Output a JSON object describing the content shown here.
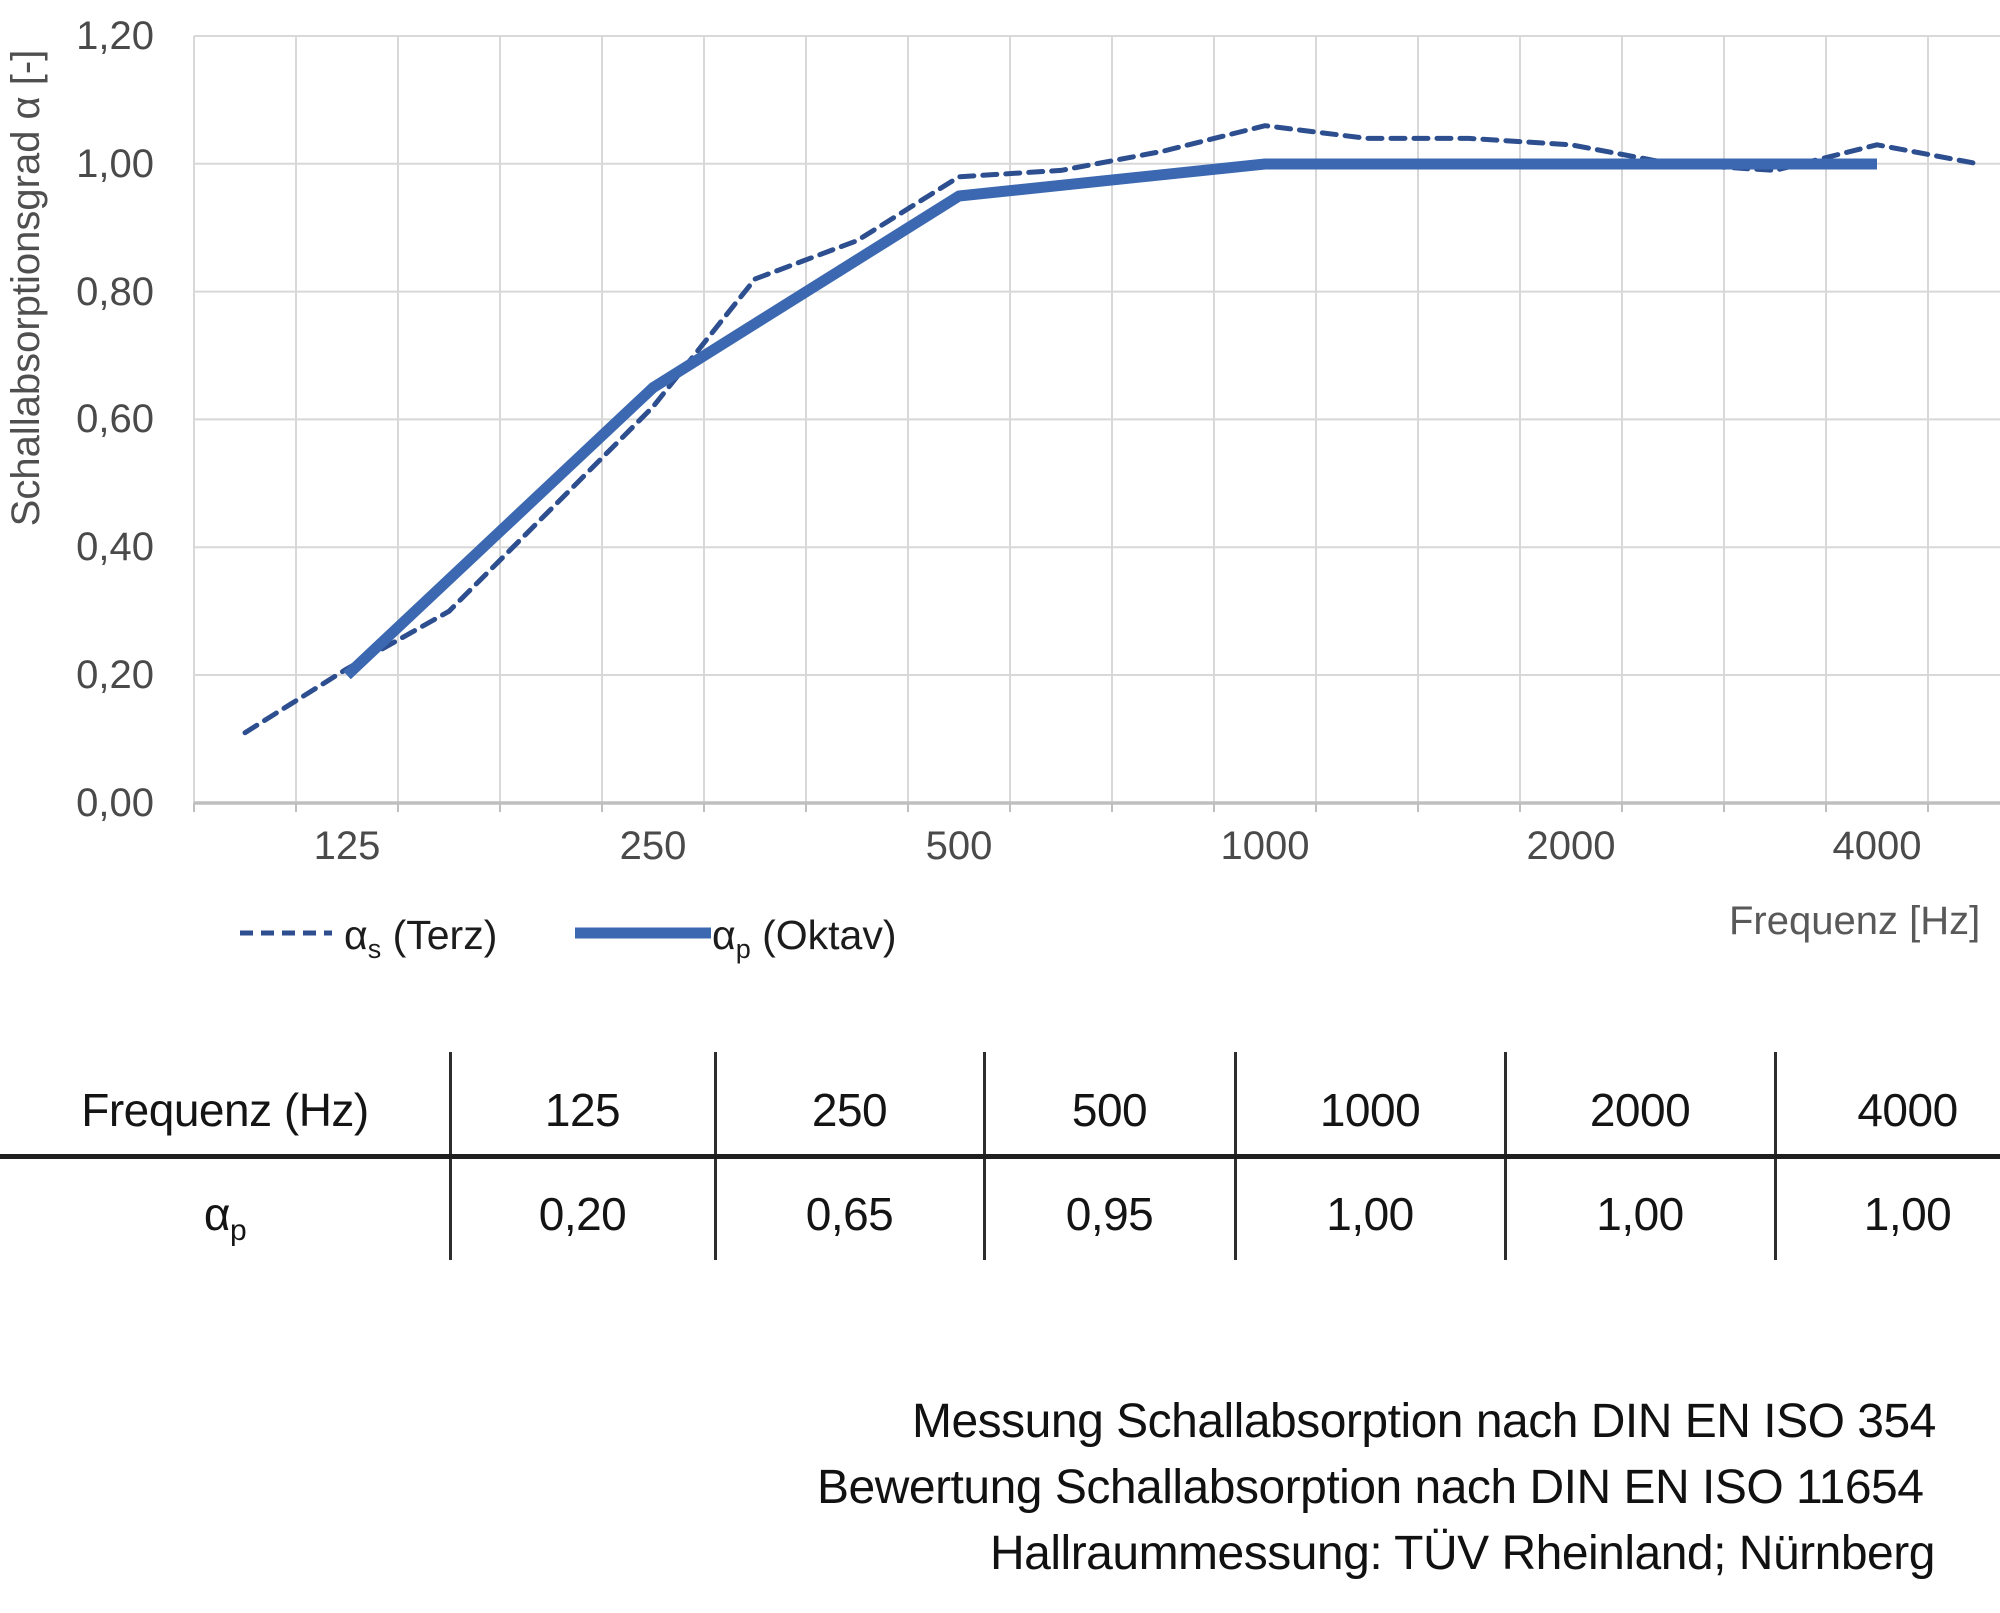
{
  "chart": {
    "y_axis_title": "Schallabsorptionsgrad α [-]",
    "x_axis_title": "Frequenz [Hz]",
    "y_ticks": [
      "1,20",
      "1,00",
      "0,80",
      "0,60",
      "0,40",
      "0,20",
      "0,00"
    ],
    "x_ticks": [
      "125",
      "250",
      "500",
      "1000",
      "2000",
      "4000"
    ],
    "legend": {
      "items": [
        {
          "symbol": "dashed-line",
          "alpha": "α",
          "sub": "s",
          "rest": " (Terz)"
        },
        {
          "symbol": "solid-line",
          "alpha": "α",
          "sub": "p",
          "rest": " (Oktav)"
        }
      ]
    }
  },
  "chart_data": {
    "type": "line",
    "title": "",
    "xlabel": "Frequenz [Hz]",
    "ylabel": "Schallabsorptionsgrad α [-]",
    "x_scale": "logarithmic (third-octave categories)",
    "ylim": [
      0.0,
      1.2
    ],
    "y_tick_step": 0.2,
    "grid": true,
    "legend_position": "bottom-left",
    "categories": [
      100,
      125,
      160,
      200,
      250,
      315,
      400,
      500,
      630,
      800,
      1000,
      1250,
      1600,
      2000,
      2500,
      3150,
      4000,
      5000
    ],
    "x_tick_values": [
      125,
      250,
      500,
      1000,
      2000,
      4000
    ],
    "series": [
      {
        "name": "αs (Terz)",
        "style": "dashed",
        "x": [
          100,
          125,
          160,
          200,
          250,
          315,
          400,
          500,
          630,
          800,
          1000,
          1250,
          1600,
          2000,
          2500,
          3150,
          4000,
          5000
        ],
        "values": [
          0.11,
          0.21,
          0.3,
          0.46,
          0.62,
          0.82,
          0.88,
          0.98,
          0.99,
          1.02,
          1.06,
          1.04,
          1.04,
          1.03,
          1.0,
          0.99,
          1.03,
          1.0
        ]
      },
      {
        "name": "αp (Oktav)",
        "style": "solid",
        "x": [
          125,
          250,
          500,
          1000,
          2000,
          4000
        ],
        "values": [
          0.2,
          0.65,
          0.95,
          1.0,
          1.0,
          1.0
        ]
      }
    ]
  },
  "table": {
    "header": [
      "Frequenz (Hz)",
      "125",
      "250",
      "500",
      "1000",
      "2000",
      "4000"
    ],
    "row_label": {
      "alpha": "α",
      "sub": "p"
    },
    "values": [
      "0,20",
      "0,65",
      "0,95",
      "1,00",
      "1,00",
      "1,00"
    ]
  },
  "footer": {
    "lines": [
      "Messung Schallabsorption nach DIN EN ISO 354",
      "Bewertung Schallabsorption nach DIN EN ISO 11654",
      "Hallraummessung: TÜV Rheinland; Nürnberg"
    ]
  },
  "colors": {
    "series_solid": "#3b68b0",
    "series_dashed": "#2d4e8f",
    "gridline": "#d8d8d8",
    "axis_line": "#bfbfbf",
    "tick_text": "#4a4a4a",
    "axis_title_text": "#595959",
    "table_text": "#141414",
    "footer_text": "#111111"
  }
}
